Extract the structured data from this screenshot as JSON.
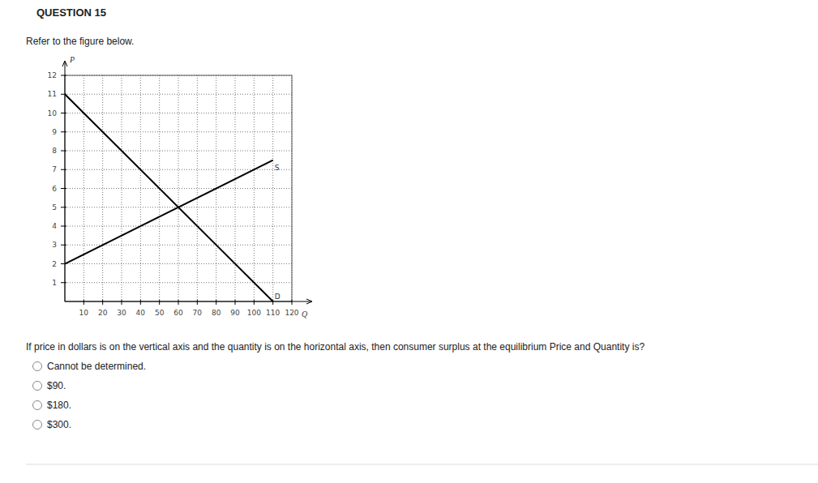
{
  "header": {
    "title": "QUESTION 15"
  },
  "intro": "Refer to the figure below.",
  "chart_data": {
    "type": "line",
    "x_label": "Q",
    "y_label": "P",
    "xlim": [
      0,
      120
    ],
    "ylim": [
      0,
      12
    ],
    "xticks": [
      10,
      20,
      30,
      40,
      50,
      60,
      70,
      80,
      90,
      100,
      110,
      120
    ],
    "yticks": [
      1,
      2,
      3,
      4,
      5,
      6,
      7,
      8,
      9,
      10,
      11,
      12
    ],
    "grid": true,
    "series": [
      {
        "name": "D",
        "color": "#000000",
        "x": [
          0,
          110
        ],
        "values": [
          11,
          0
        ]
      },
      {
        "name": "S",
        "color": "#000000",
        "x": [
          0,
          110
        ],
        "values": [
          2,
          7.5
        ]
      }
    ]
  },
  "question": {
    "text": "If price in dollars is on the vertical axis and the quantity is on the horizontal axis, then consumer surplus at the equilibrium Price and Quantity is?",
    "options": [
      "Cannot be determined.",
      "$90.",
      "$180.",
      "$300."
    ]
  }
}
